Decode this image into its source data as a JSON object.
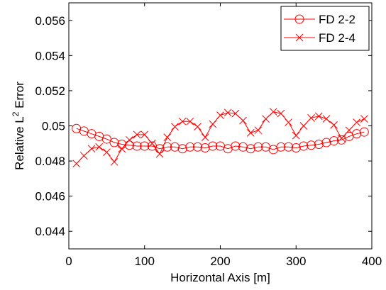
{
  "chart_data": {
    "type": "line",
    "xlabel": "Horizontal Axis [m]",
    "ylabel": "Relative L",
    "ylabel_superscript": "2",
    "ylabel_suffix": " Error",
    "xlim": [
      0,
      400
    ],
    "ylim": [
      0.043,
      0.057
    ],
    "xticks": [
      0,
      100,
      200,
      300,
      400
    ],
    "xtick_labels": [
      "0",
      "100",
      "200",
      "300",
      "400"
    ],
    "yticks": [
      0.044,
      0.046,
      0.048,
      0.05,
      0.052,
      0.054,
      0.056
    ],
    "ytick_labels": [
      "0.044",
      "0.046",
      "0.048",
      "0.05",
      "0.052",
      "0.054",
      "0.056"
    ],
    "grid": false,
    "legend_position": "top-right",
    "series": [
      {
        "name": "FD 2-2",
        "marker": "circle",
        "color": "#ff0000",
        "x": [
          10,
          20,
          30,
          40,
          50,
          60,
          70,
          80,
          90,
          100,
          110,
          120,
          130,
          140,
          150,
          160,
          170,
          180,
          190,
          200,
          210,
          220,
          230,
          240,
          250,
          260,
          270,
          280,
          290,
          300,
          310,
          320,
          330,
          340,
          350,
          360,
          370,
          380,
          390
        ],
        "y": [
          0.04985,
          0.0497,
          0.04955,
          0.0494,
          0.04925,
          0.04905,
          0.04895,
          0.0489,
          0.04885,
          0.04885,
          0.04885,
          0.0487,
          0.0488,
          0.0488,
          0.0487,
          0.0488,
          0.0488,
          0.04875,
          0.04885,
          0.04885,
          0.0487,
          0.04885,
          0.0488,
          0.0487,
          0.0488,
          0.0488,
          0.04865,
          0.0488,
          0.0488,
          0.04875,
          0.04885,
          0.0489,
          0.04895,
          0.04905,
          0.04915,
          0.0492,
          0.0494,
          0.04955,
          0.04965
        ]
      },
      {
        "name": "FD 2-4",
        "marker": "x",
        "color": "#ff0000",
        "x": [
          10,
          20,
          30,
          40,
          50,
          60,
          70,
          80,
          90,
          100,
          110,
          120,
          130,
          140,
          150,
          160,
          170,
          180,
          190,
          200,
          210,
          220,
          230,
          240,
          250,
          260,
          270,
          280,
          290,
          300,
          310,
          320,
          330,
          340,
          350,
          360,
          370,
          380,
          390
        ],
        "y": [
          0.04785,
          0.0483,
          0.0487,
          0.0488,
          0.0485,
          0.04795,
          0.0487,
          0.0492,
          0.0495,
          0.0495,
          0.049,
          0.0484,
          0.04935,
          0.04995,
          0.05025,
          0.05025,
          0.04995,
          0.04935,
          0.0501,
          0.0506,
          0.05075,
          0.0507,
          0.0503,
          0.0496,
          0.04975,
          0.0504,
          0.0508,
          0.0507,
          0.0502,
          0.04945,
          0.05,
          0.05045,
          0.05055,
          0.0504,
          0.05005,
          0.0493,
          0.04975,
          0.0502,
          0.0504
        ]
      }
    ]
  }
}
